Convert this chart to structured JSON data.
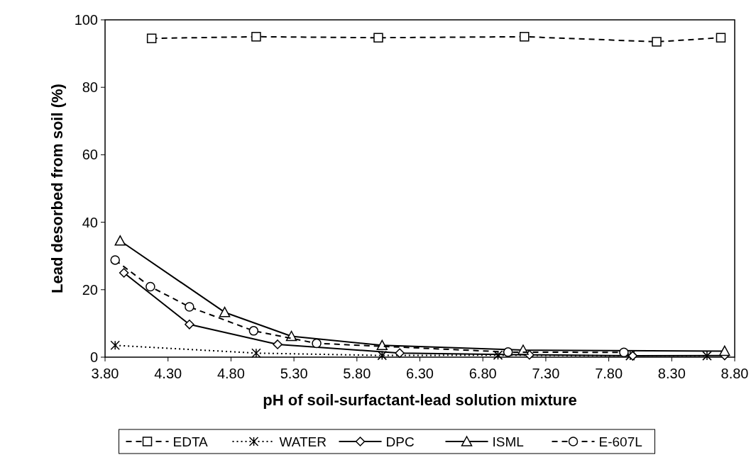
{
  "chart_data": {
    "type": "line",
    "xlabel": "pH of soil-surfactant-lead solution mixture",
    "ylabel": "Lead desorbed from soil (%)",
    "xlim": [
      3.8,
      8.8
    ],
    "xticks": [
      {
        "value": 3.8,
        "label": "3.80"
      },
      {
        "value": 4.3,
        "label": "4.30"
      },
      {
        "value": 4.8,
        "label": "4.80"
      },
      {
        "value": 5.3,
        "label": "5.30"
      },
      {
        "value": 5.8,
        "label": "5.80"
      },
      {
        "value": 6.3,
        "label": "6.30"
      },
      {
        "value": 6.8,
        "label": "6.80"
      },
      {
        "value": 7.3,
        "label": "7.30"
      },
      {
        "value": 7.8,
        "label": "7.80"
      },
      {
        "value": 8.3,
        "label": "8.30"
      },
      {
        "value": 8.8,
        "label": "8.80"
      }
    ],
    "ylim": [
      0,
      100
    ],
    "yticks": [
      0,
      20,
      40,
      60,
      80,
      100
    ],
    "grid": false,
    "legend": "bottom",
    "series": [
      {
        "name": "EDTA",
        "color": "#000000",
        "line_style": "dashed",
        "marker": "square",
        "x": [
          4.17,
          5.0,
          5.97,
          7.13,
          8.18,
          8.69
        ],
        "values": [
          94.5,
          95,
          94.7,
          95,
          93.5,
          94.7
        ]
      },
      {
        "name": "WATER",
        "color": "#000000",
        "line_style": "dotted",
        "marker": "cross",
        "x": [
          3.88,
          5.0,
          6.0,
          6.92,
          7.97,
          8.58
        ],
        "values": [
          3.5,
          1.2,
          0.5,
          0.6,
          0.4,
          0.4
        ]
      },
      {
        "name": "DPC",
        "color": "#000000",
        "line_style": "solid",
        "marker": "diamond",
        "x": [
          3.95,
          4.47,
          5.17,
          6.14,
          7.17,
          7.99,
          8.72
        ],
        "values": [
          25,
          9.7,
          3.8,
          1.2,
          0.7,
          0.4,
          0.5
        ]
      },
      {
        "name": "ISML",
        "color": "#000000",
        "line_style": "solid",
        "marker": "triangle",
        "x": [
          3.92,
          4.75,
          5.28,
          6.0,
          7.12,
          8.72
        ],
        "values": [
          34.5,
          13.3,
          6.2,
          3.5,
          2.1,
          1.8
        ]
      },
      {
        "name": "E-607L",
        "color": "#000000",
        "line_style": "dashed",
        "marker": "circle",
        "x": [
          3.88,
          4.16,
          4.47,
          4.98,
          5.48,
          7.0,
          7.92
        ],
        "values": [
          28.8,
          20.9,
          14.9,
          7.8,
          4.1,
          1.5,
          1.4
        ]
      }
    ]
  }
}
